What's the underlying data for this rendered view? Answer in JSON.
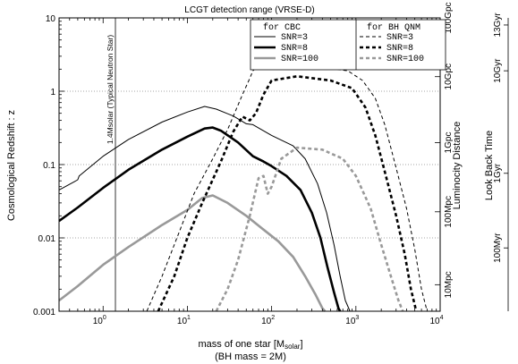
{
  "chart_data": {
    "type": "line",
    "title": "LCGT detection range (VRSE-D)",
    "xlabel": "mass of one star [M",
    "xlabel_sub": "solar",
    "xlabel_end": "]",
    "xlabel2": "(BH mass = 2M)",
    "ylabel": "Cosmological Redshift : z",
    "ylabel_right1": "Luminocity Distance",
    "ylabel_right2": "Look Back Time",
    "x_scale": "log",
    "y_scale": "log",
    "xlim": [
      0.3,
      10000
    ],
    "ylim": [
      0.001,
      10
    ],
    "x_ticks": [
      "10^0",
      "10^1",
      "10^2",
      "10^3",
      "10^4"
    ],
    "y_ticks": [
      "0.001",
      "0.01",
      "0.1",
      "1",
      "10"
    ],
    "distance_ticks": [
      {
        "label": "10Mpc",
        "z": 0.0023
      },
      {
        "label": "100Mpc",
        "z": 0.0227
      },
      {
        "label": "1Gpc",
        "z": 0.199
      },
      {
        "label": "10Gpc",
        "z": 1.58
      },
      {
        "label": "100Gpc",
        "z": 10
      }
    ],
    "lookback_ticks": [
      {
        "label": "100Myr",
        "z": 0.0073
      },
      {
        "label": "1Gyr",
        "z": 0.076
      },
      {
        "label": "10Gyr",
        "z": 1.9
      },
      {
        "label": "13Gyr",
        "z": 8
      }
    ],
    "gridlines_z": [
      0.01,
      0.1,
      1
    ],
    "vline": {
      "x": 1.4,
      "label": "1.4Msolar (Typical Neutron Star)"
    },
    "legend": {
      "position": "top-right",
      "groups": [
        {
          "title": "for CBC",
          "entries": [
            "SNR=3",
            "SNR=8",
            "SNR=100"
          ]
        },
        {
          "title": "for BH QNM",
          "entries": [
            "SNR=3",
            "SNR=8",
            "SNR=100"
          ]
        }
      ]
    },
    "series": [
      {
        "name": "SNR=3",
        "group": "for CBC",
        "color": "#000000",
        "width": 1,
        "dash": "",
        "points": [
          [
            0.3,
            0.045
          ],
          [
            0.45,
            0.058
          ],
          [
            0.5,
            0.062
          ],
          [
            0.52,
            0.07
          ],
          [
            1,
            0.13
          ],
          [
            2,
            0.22
          ],
          [
            5,
            0.38
          ],
          [
            10,
            0.52
          ],
          [
            16,
            0.62
          ],
          [
            22,
            0.57
          ],
          [
            35,
            0.46
          ],
          [
            50,
            0.36
          ],
          [
            60,
            0.35
          ],
          [
            100,
            0.25
          ],
          [
            180,
            0.18
          ],
          [
            250,
            0.12
          ],
          [
            350,
            0.055
          ],
          [
            450,
            0.022
          ],
          [
            550,
            0.008
          ],
          [
            650,
            0.003
          ],
          [
            750,
            0.0014
          ],
          [
            850,
            0.001
          ]
        ]
      },
      {
        "name": "SNR=8",
        "group": "for CBC",
        "color": "#000000",
        "width": 2.6,
        "dash": "",
        "points": [
          [
            0.3,
            0.017
          ],
          [
            0.5,
            0.026
          ],
          [
            1,
            0.048
          ],
          [
            2,
            0.085
          ],
          [
            5,
            0.16
          ],
          [
            10,
            0.24
          ],
          [
            16,
            0.31
          ],
          [
            20,
            0.32
          ],
          [
            25,
            0.29
          ],
          [
            40,
            0.2
          ],
          [
            60,
            0.13
          ],
          [
            80,
            0.11
          ],
          [
            100,
            0.095
          ],
          [
            150,
            0.07
          ],
          [
            220,
            0.045
          ],
          [
            300,
            0.022
          ],
          [
            380,
            0.01
          ],
          [
            460,
            0.004
          ],
          [
            550,
            0.0018
          ],
          [
            620,
            0.0011
          ],
          [
            650,
            0.001
          ]
        ]
      },
      {
        "name": "SNR=100",
        "group": "for CBC",
        "color": "#999999",
        "width": 2.6,
        "dash": "",
        "points": [
          [
            0.3,
            0.0014
          ],
          [
            0.5,
            0.0022
          ],
          [
            1,
            0.0043
          ],
          [
            2,
            0.0075
          ],
          [
            5,
            0.015
          ],
          [
            10,
            0.024
          ],
          [
            15,
            0.035
          ],
          [
            20,
            0.038
          ],
          [
            30,
            0.03
          ],
          [
            50,
            0.02
          ],
          [
            80,
            0.013
          ],
          [
            120,
            0.009
          ],
          [
            180,
            0.0055
          ],
          [
            250,
            0.003
          ],
          [
            330,
            0.0017
          ],
          [
            400,
            0.0011
          ],
          [
            430,
            0.001
          ]
        ]
      },
      {
        "name": "SNR=3",
        "group": "for BH QNM",
        "color": "#000000",
        "width": 1,
        "dash": "4,3",
        "points": [
          [
            3.3,
            0.001
          ],
          [
            5,
            0.003
          ],
          [
            8,
            0.012
          ],
          [
            12,
            0.04
          ],
          [
            20,
            0.12
          ],
          [
            30,
            0.3
          ],
          [
            45,
            0.9
          ],
          [
            55,
            1.5
          ],
          [
            60,
            1.9
          ],
          [
            75,
            2.4
          ],
          [
            120,
            2.5
          ],
          [
            300,
            2.2
          ],
          [
            800,
            1.9
          ],
          [
            1200,
            1.4
          ],
          [
            1700,
            0.8
          ],
          [
            2200,
            0.35
          ],
          [
            3000,
            0.09
          ],
          [
            4000,
            0.025
          ],
          [
            5000,
            0.007
          ],
          [
            6000,
            0.002
          ],
          [
            7000,
            0.001
          ]
        ]
      },
      {
        "name": "SNR=8",
        "group": "for BH QNM",
        "color": "#000000",
        "width": 2.6,
        "dash": "4,3",
        "points": [
          [
            4.5,
            0.001
          ],
          [
            7,
            0.003
          ],
          [
            10,
            0.01
          ],
          [
            15,
            0.03
          ],
          [
            25,
            0.11
          ],
          [
            35,
            0.28
          ],
          [
            45,
            0.45
          ],
          [
            55,
            0.4
          ],
          [
            65,
            0.5
          ],
          [
            80,
            0.9
          ],
          [
            100,
            1.4
          ],
          [
            200,
            1.6
          ],
          [
            500,
            1.4
          ],
          [
            900,
            1.1
          ],
          [
            1300,
            0.6
          ],
          [
            1700,
            0.25
          ],
          [
            2200,
            0.08
          ],
          [
            3000,
            0.02
          ],
          [
            3800,
            0.006
          ],
          [
            4500,
            0.002
          ],
          [
            5200,
            0.001
          ]
        ]
      },
      {
        "name": "SNR=100",
        "group": "for BH QNM",
        "color": "#999999",
        "width": 2.6,
        "dash": "4,3",
        "points": [
          [
            22,
            0.001
          ],
          [
            30,
            0.002
          ],
          [
            40,
            0.005
          ],
          [
            55,
            0.02
          ],
          [
            70,
            0.065
          ],
          [
            80,
            0.07
          ],
          [
            90,
            0.04
          ],
          [
            100,
            0.05
          ],
          [
            130,
            0.12
          ],
          [
            200,
            0.17
          ],
          [
            400,
            0.16
          ],
          [
            700,
            0.12
          ],
          [
            1000,
            0.07
          ],
          [
            1500,
            0.025
          ],
          [
            2000,
            0.008
          ],
          [
            2600,
            0.003
          ],
          [
            3200,
            0.0014
          ],
          [
            3600,
            0.001
          ]
        ]
      }
    ]
  }
}
